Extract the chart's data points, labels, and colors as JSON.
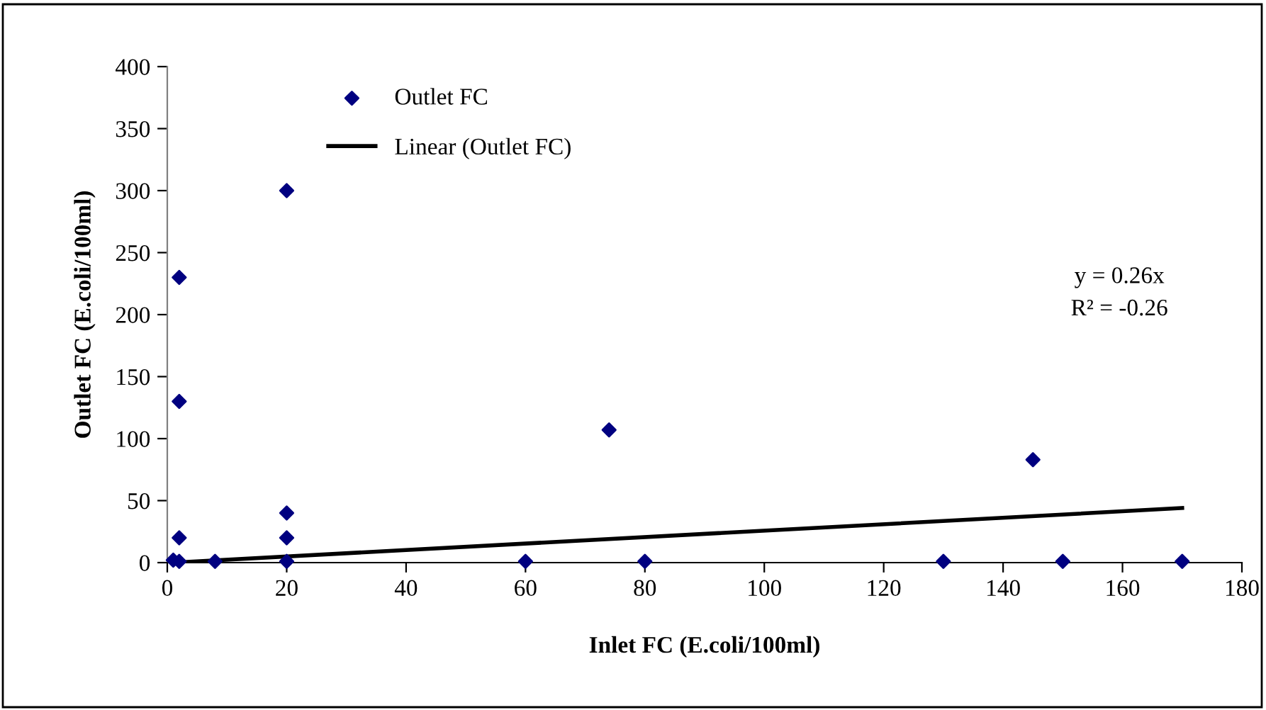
{
  "chart_data": {
    "type": "scatter",
    "xlabel": "Inlet FC (E.coli/100ml)",
    "ylabel": "Outlet FC (E.coli/100ml)",
    "xlim": [
      0,
      180
    ],
    "xticks": [
      0,
      20,
      40,
      60,
      80,
      100,
      120,
      140,
      160,
      180
    ],
    "ylim": [
      0,
      400
    ],
    "yticks": [
      0,
      50,
      100,
      150,
      200,
      250,
      300,
      350,
      400
    ],
    "grid": false,
    "legend": "top left",
    "marker": "diamond",
    "series": [
      {
        "name": "Outlet FC",
        "color": "#000080",
        "x": [
          1,
          2,
          2,
          2,
          2,
          8,
          20,
          20,
          20,
          20,
          60,
          74,
          80,
          130,
          145,
          150,
          170
        ],
        "values": [
          2,
          230,
          130,
          20,
          1,
          1,
          300,
          40,
          20,
          1,
          1,
          107,
          1,
          1,
          83,
          1,
          1
        ]
      },
      {
        "name": "Linear (Outlet FC)",
        "type": "line",
        "color": "#000000",
        "marker": "none",
        "line_style": "solid",
        "x": [
          1,
          170
        ],
        "values": [
          0,
          44
        ]
      }
    ],
    "annotations": [
      "y = 0.26x",
      "R² = -0.26"
    ]
  }
}
